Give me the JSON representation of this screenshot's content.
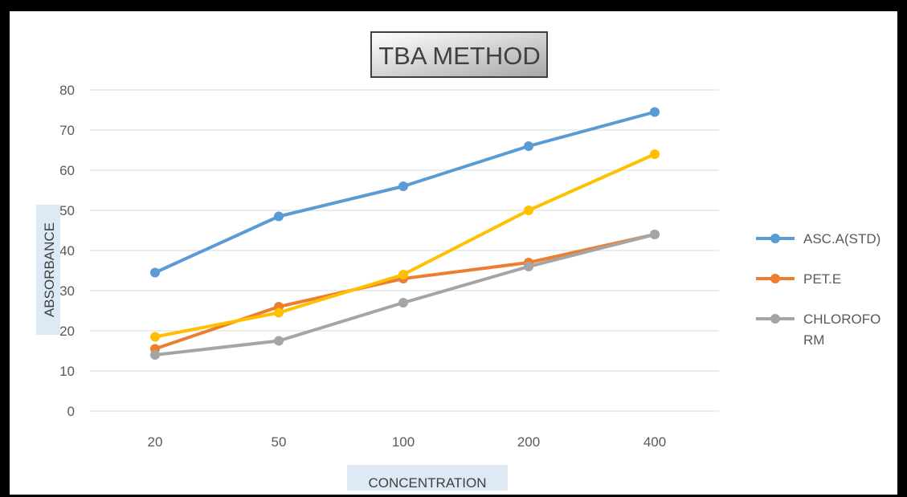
{
  "chart_data": {
    "type": "line",
    "title": "TBA METHOD",
    "xlabel": "CONCENTRATION",
    "ylabel": "ABSORBANCE",
    "categories": [
      "20",
      "50",
      "100",
      "200",
      "400"
    ],
    "yticks": [
      "0",
      "10",
      "20",
      "30",
      "40",
      "50",
      "60",
      "70",
      "80"
    ],
    "ylim": [
      0,
      80
    ],
    "grid": true,
    "legend_position": "right",
    "series": [
      {
        "name": "ASC.A(STD)",
        "values": [
          34.5,
          48.5,
          56,
          66,
          74.5
        ],
        "color": "#5b9bd5"
      },
      {
        "name": "PET.E",
        "values": [
          15.5,
          26,
          33,
          37,
          44
        ],
        "color": "#ed7d31"
      },
      {
        "name": "",
        "values": [
          18.5,
          24.5,
          34,
          50,
          64
        ],
        "color": "#ffc000"
      },
      {
        "name": "CHLOROFO\nRM",
        "values": [
          14,
          17.5,
          27,
          36,
          44
        ],
        "color": "#a5a5a5"
      }
    ],
    "legend_order": [
      0,
      1,
      3
    ]
  }
}
